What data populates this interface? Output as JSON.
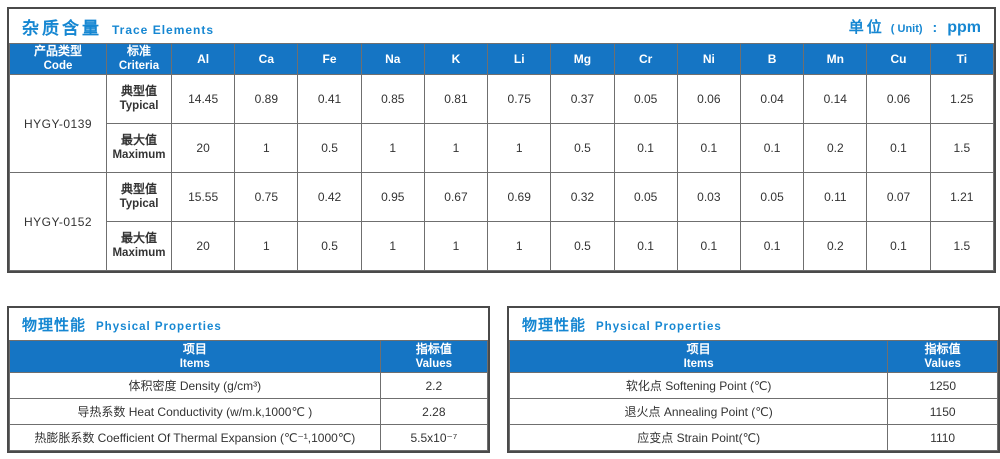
{
  "accent_title_color": "#1687d2",
  "header_bg_color": "#1575c4",
  "trace": {
    "title_zh": "杂质含量",
    "title_en": "Trace Elements",
    "unit_zh": "单位",
    "unit_paren": "( Unit)",
    "unit_colon": ":",
    "unit_value": "ppm",
    "col_product_zh": "产品类型",
    "col_product_en": "Code",
    "col_criteria_zh": "标准",
    "col_criteria_en": "Criteria",
    "elements": [
      "Al",
      "Ca",
      "Fe",
      "Na",
      "K",
      "Li",
      "Mg",
      "Cr",
      "Ni",
      "B",
      "Mn",
      "Cu",
      "Ti"
    ],
    "products": [
      {
        "code": "HYGY-0139",
        "rows": [
          {
            "label_zh": "典型值",
            "label_en": "Typical",
            "values": [
              "14.45",
              "0.89",
              "0.41",
              "0.85",
              "0.81",
              "0.75",
              "0.37",
              "0.05",
              "0.06",
              "0.04",
              "0.14",
              "0.06",
              "1.25"
            ]
          },
          {
            "label_zh": "最大值",
            "label_en": "Maximum",
            "values": [
              "20",
              "1",
              "0.5",
              "1",
              "1",
              "1",
              "0.5",
              "0.1",
              "0.1",
              "0.1",
              "0.2",
              "0.1",
              "1.5"
            ]
          }
        ]
      },
      {
        "code": "HYGY-0152",
        "rows": [
          {
            "label_zh": "典型值",
            "label_en": "Typical",
            "values": [
              "15.55",
              "0.75",
              "0.42",
              "0.95",
              "0.67",
              "0.69",
              "0.32",
              "0.05",
              "0.03",
              "0.05",
              "0.11",
              "0.07",
              "1.21"
            ]
          },
          {
            "label_zh": "最大值",
            "label_en": "Maximum",
            "values": [
              "20",
              "1",
              "0.5",
              "1",
              "1",
              "1",
              "0.5",
              "0.1",
              "0.1",
              "0.1",
              "0.2",
              "0.1",
              "1.5"
            ]
          }
        ]
      }
    ]
  },
  "physical_left": {
    "title_zh": "物理性能",
    "title_en": "Physical Properties",
    "col_items_zh": "项目",
    "col_items_en": "Items",
    "col_values_zh": "指标值",
    "col_values_en": "Values",
    "rows": [
      {
        "item": "体积密度 Density (g/cm³)",
        "value": "2.2"
      },
      {
        "item": "导热系数 Heat Conductivity (w/m.k,1000℃ )",
        "value": "2.28"
      },
      {
        "item": "热膨胀系数 Coefficient Of Thermal Expansion (℃⁻¹,1000℃)",
        "value": "5.5x10⁻⁷"
      }
    ]
  },
  "physical_right": {
    "title_zh": "物理性能",
    "title_en": "Physical Properties",
    "col_items_zh": "项目",
    "col_items_en": "Items",
    "col_values_zh": "指标值",
    "col_values_en": "Values",
    "rows": [
      {
        "item": "软化点 Softening Point (℃)",
        "value": "1250"
      },
      {
        "item": "退火点 Annealing Point (℃)",
        "value": "1150"
      },
      {
        "item": "应变点 Strain Point(℃)",
        "value": "1110"
      }
    ]
  }
}
